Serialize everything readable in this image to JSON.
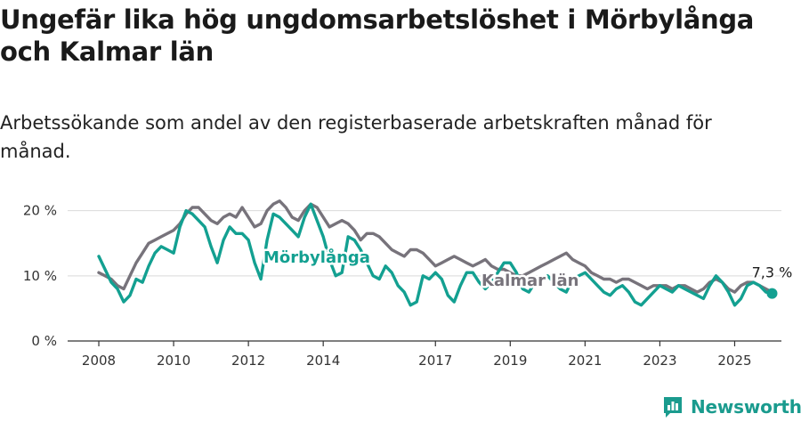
{
  "title": "Ungefär lika hög ungdomsarbetslöshet i Mörbylånga och Kalmar län",
  "subtitle": "Arbetssökande som andel av den registerbaserade arbetskraften månad för månad.",
  "brand": {
    "name": "Newsworthy",
    "icon": "newsworthy-logo-icon"
  },
  "colors": {
    "morbylanga": "#13a091",
    "kalmar": "#77737b",
    "grid": "#d9d9d9",
    "axis": "#333333"
  },
  "chart_data": {
    "type": "line",
    "y_tick_labels": [
      "0 %",
      "10 %",
      "20 %"
    ],
    "y_ticks": [
      0,
      10,
      20
    ],
    "ylim": [
      0,
      22
    ],
    "x_tick_labels": [
      "2008",
      "2010",
      "2012",
      "2014",
      "2017",
      "2019",
      "2021",
      "2023",
      "2025"
    ],
    "x_tick_dates": [
      "2008-01",
      "2010-01",
      "2012-01",
      "2014-01",
      "2017-01",
      "2019-01",
      "2021-01",
      "2023-01",
      "2025-01"
    ],
    "x_range": [
      "2007-03",
      "2026-04"
    ],
    "grid": true,
    "end_value_label": "7,3 %",
    "series": [
      {
        "name": "Mörbylånga",
        "color": "#13a091",
        "points": [
          [
            "2008-01",
            13.0
          ],
          [
            "2008-03",
            11.0
          ],
          [
            "2008-05",
            9.0
          ],
          [
            "2008-07",
            8.0
          ],
          [
            "2008-09",
            6.0
          ],
          [
            "2008-11",
            7.0
          ],
          [
            "2009-01",
            9.5
          ],
          [
            "2009-03",
            9.0
          ],
          [
            "2009-05",
            11.5
          ],
          [
            "2009-07",
            13.5
          ],
          [
            "2009-09",
            14.5
          ],
          [
            "2009-11",
            14.0
          ],
          [
            "2010-01",
            13.5
          ],
          [
            "2010-03",
            17.5
          ],
          [
            "2010-05",
            20.0
          ],
          [
            "2010-07",
            19.5
          ],
          [
            "2010-09",
            18.5
          ],
          [
            "2010-11",
            17.5
          ],
          [
            "2011-01",
            14.5
          ],
          [
            "2011-03",
            12.0
          ],
          [
            "2011-05",
            15.5
          ],
          [
            "2011-07",
            17.5
          ],
          [
            "2011-09",
            16.5
          ],
          [
            "2011-11",
            16.5
          ],
          [
            "2012-01",
            15.5
          ],
          [
            "2012-03",
            12.0
          ],
          [
            "2012-05",
            9.5
          ],
          [
            "2012-07",
            15.5
          ],
          [
            "2012-09",
            19.5
          ],
          [
            "2012-11",
            19.0
          ],
          [
            "2013-01",
            18.0
          ],
          [
            "2013-03",
            17.0
          ],
          [
            "2013-05",
            16.0
          ],
          [
            "2013-07",
            19.0
          ],
          [
            "2013-09",
            21.0
          ],
          [
            "2013-11",
            18.5
          ],
          [
            "2014-01",
            16.0
          ],
          [
            "2014-03",
            12.5
          ],
          [
            "2014-05",
            10.0
          ],
          [
            "2014-07",
            10.5
          ],
          [
            "2014-09",
            16.0
          ],
          [
            "2014-11",
            15.5
          ],
          [
            "2015-01",
            14.0
          ],
          [
            "2015-03",
            12.0
          ],
          [
            "2015-05",
            10.0
          ],
          [
            "2015-07",
            9.5
          ],
          [
            "2015-09",
            11.5
          ],
          [
            "2015-11",
            10.5
          ],
          [
            "2016-01",
            8.5
          ],
          [
            "2016-03",
            7.5
          ],
          [
            "2016-05",
            5.5
          ],
          [
            "2016-07",
            6.0
          ],
          [
            "2016-09",
            10.0
          ],
          [
            "2016-11",
            9.5
          ],
          [
            "2017-01",
            10.5
          ],
          [
            "2017-03",
            9.5
          ],
          [
            "2017-05",
            7.0
          ],
          [
            "2017-07",
            6.0
          ],
          [
            "2017-09",
            8.5
          ],
          [
            "2017-11",
            10.5
          ],
          [
            "2018-01",
            10.5
          ],
          [
            "2018-03",
            9.0
          ],
          [
            "2018-05",
            8.0
          ],
          [
            "2018-07",
            9.0
          ],
          [
            "2018-09",
            10.5
          ],
          [
            "2018-11",
            12.0
          ],
          [
            "2019-01",
            12.0
          ],
          [
            "2019-03",
            10.5
          ],
          [
            "2019-05",
            8.0
          ],
          [
            "2019-07",
            7.5
          ],
          [
            "2019-09",
            9.0
          ],
          [
            "2019-11",
            9.5
          ],
          [
            "2020-01",
            10.0
          ],
          [
            "2020-03",
            9.0
          ],
          [
            "2020-05",
            8.0
          ],
          [
            "2020-07",
            7.5
          ],
          [
            "2020-09",
            9.5
          ],
          [
            "2020-11",
            10.0
          ],
          [
            "2021-01",
            10.5
          ],
          [
            "2021-03",
            9.5
          ],
          [
            "2021-05",
            8.5
          ],
          [
            "2021-07",
            7.5
          ],
          [
            "2021-09",
            7.0
          ],
          [
            "2021-11",
            8.0
          ],
          [
            "2022-01",
            8.5
          ],
          [
            "2022-03",
            7.5
          ],
          [
            "2022-05",
            6.0
          ],
          [
            "2022-07",
            5.5
          ],
          [
            "2022-09",
            6.5
          ],
          [
            "2022-11",
            7.5
          ],
          [
            "2023-01",
            8.5
          ],
          [
            "2023-03",
            8.0
          ],
          [
            "2023-05",
            7.5
          ],
          [
            "2023-07",
            8.5
          ],
          [
            "2023-09",
            8.0
          ],
          [
            "2023-11",
            7.5
          ],
          [
            "2024-01",
            7.0
          ],
          [
            "2024-03",
            6.5
          ],
          [
            "2024-05",
            8.5
          ],
          [
            "2024-07",
            10.0
          ],
          [
            "2024-09",
            9.0
          ],
          [
            "2024-11",
            7.5
          ],
          [
            "2025-01",
            5.5
          ],
          [
            "2025-03",
            6.5
          ],
          [
            "2025-05",
            8.5
          ],
          [
            "2025-07",
            9.0
          ],
          [
            "2025-09",
            8.5
          ],
          [
            "2025-11",
            7.5
          ],
          [
            "2026-01",
            7.3
          ]
        ]
      },
      {
        "name": "Kalmar län",
        "color": "#77737b",
        "points": [
          [
            "2008-01",
            10.5
          ],
          [
            "2008-03",
            10.0
          ],
          [
            "2008-05",
            9.5
          ],
          [
            "2008-07",
            8.5
          ],
          [
            "2008-09",
            8.0
          ],
          [
            "2008-11",
            10.0
          ],
          [
            "2009-01",
            12.0
          ],
          [
            "2009-03",
            13.5
          ],
          [
            "2009-05",
            15.0
          ],
          [
            "2009-07",
            15.5
          ],
          [
            "2009-09",
            16.0
          ],
          [
            "2009-11",
            16.5
          ],
          [
            "2010-01",
            17.0
          ],
          [
            "2010-03",
            18.0
          ],
          [
            "2010-05",
            19.5
          ],
          [
            "2010-07",
            20.5
          ],
          [
            "2010-09",
            20.5
          ],
          [
            "2010-11",
            19.5
          ],
          [
            "2011-01",
            18.5
          ],
          [
            "2011-03",
            18.0
          ],
          [
            "2011-05",
            19.0
          ],
          [
            "2011-07",
            19.5
          ],
          [
            "2011-09",
            19.0
          ],
          [
            "2011-11",
            20.5
          ],
          [
            "2012-01",
            19.0
          ],
          [
            "2012-03",
            17.5
          ],
          [
            "2012-05",
            18.0
          ],
          [
            "2012-07",
            20.0
          ],
          [
            "2012-09",
            21.0
          ],
          [
            "2012-11",
            21.5
          ],
          [
            "2013-01",
            20.5
          ],
          [
            "2013-03",
            19.0
          ],
          [
            "2013-05",
            18.5
          ],
          [
            "2013-07",
            20.0
          ],
          [
            "2013-09",
            21.0
          ],
          [
            "2013-11",
            20.5
          ],
          [
            "2014-01",
            19.0
          ],
          [
            "2014-03",
            17.5
          ],
          [
            "2014-05",
            18.0
          ],
          [
            "2014-07",
            18.5
          ],
          [
            "2014-09",
            18.0
          ],
          [
            "2014-11",
            17.0
          ],
          [
            "2015-01",
            15.5
          ],
          [
            "2015-03",
            16.5
          ],
          [
            "2015-05",
            16.5
          ],
          [
            "2015-07",
            16.0
          ],
          [
            "2015-09",
            15.0
          ],
          [
            "2015-11",
            14.0
          ],
          [
            "2016-01",
            13.5
          ],
          [
            "2016-03",
            13.0
          ],
          [
            "2016-05",
            14.0
          ],
          [
            "2016-07",
            14.0
          ],
          [
            "2016-09",
            13.5
          ],
          [
            "2016-11",
            12.5
          ],
          [
            "2017-01",
            11.5
          ],
          [
            "2017-03",
            12.0
          ],
          [
            "2017-05",
            12.5
          ],
          [
            "2017-07",
            13.0
          ],
          [
            "2017-09",
            12.5
          ],
          [
            "2017-11",
            12.0
          ],
          [
            "2018-01",
            11.5
          ],
          [
            "2018-03",
            12.0
          ],
          [
            "2018-05",
            12.5
          ],
          [
            "2018-07",
            11.5
          ],
          [
            "2018-09",
            11.0
          ],
          [
            "2018-11",
            11.0
          ],
          [
            "2019-01",
            10.5
          ],
          [
            "2019-03",
            10.0
          ],
          [
            "2019-05",
            10.0
          ],
          [
            "2019-07",
            10.5
          ],
          [
            "2019-09",
            11.0
          ],
          [
            "2019-11",
            11.5
          ],
          [
            "2020-01",
            12.0
          ],
          [
            "2020-03",
            12.5
          ],
          [
            "2020-05",
            13.0
          ],
          [
            "2020-07",
            13.5
          ],
          [
            "2020-09",
            12.5
          ],
          [
            "2020-11",
            12.0
          ],
          [
            "2021-01",
            11.5
          ],
          [
            "2021-03",
            10.5
          ],
          [
            "2021-05",
            10.0
          ],
          [
            "2021-07",
            9.5
          ],
          [
            "2021-09",
            9.5
          ],
          [
            "2021-11",
            9.0
          ],
          [
            "2022-01",
            9.5
          ],
          [
            "2022-03",
            9.5
          ],
          [
            "2022-05",
            9.0
          ],
          [
            "2022-07",
            8.5
          ],
          [
            "2022-09",
            8.0
          ],
          [
            "2022-11",
            8.5
          ],
          [
            "2023-01",
            8.5
          ],
          [
            "2023-03",
            8.5
          ],
          [
            "2023-05",
            8.0
          ],
          [
            "2023-07",
            8.5
          ],
          [
            "2023-09",
            8.5
          ],
          [
            "2023-11",
            8.0
          ],
          [
            "2024-01",
            7.5
          ],
          [
            "2024-03",
            8.0
          ],
          [
            "2024-05",
            9.0
          ],
          [
            "2024-07",
            9.5
          ],
          [
            "2024-09",
            9.0
          ],
          [
            "2024-11",
            8.0
          ],
          [
            "2025-01",
            7.5
          ],
          [
            "2025-03",
            8.5
          ],
          [
            "2025-05",
            9.0
          ],
          [
            "2025-07",
            9.0
          ],
          [
            "2025-09",
            8.5
          ],
          [
            "2025-11",
            8.0
          ],
          [
            "2026-01",
            7.5
          ]
        ]
      }
    ]
  }
}
